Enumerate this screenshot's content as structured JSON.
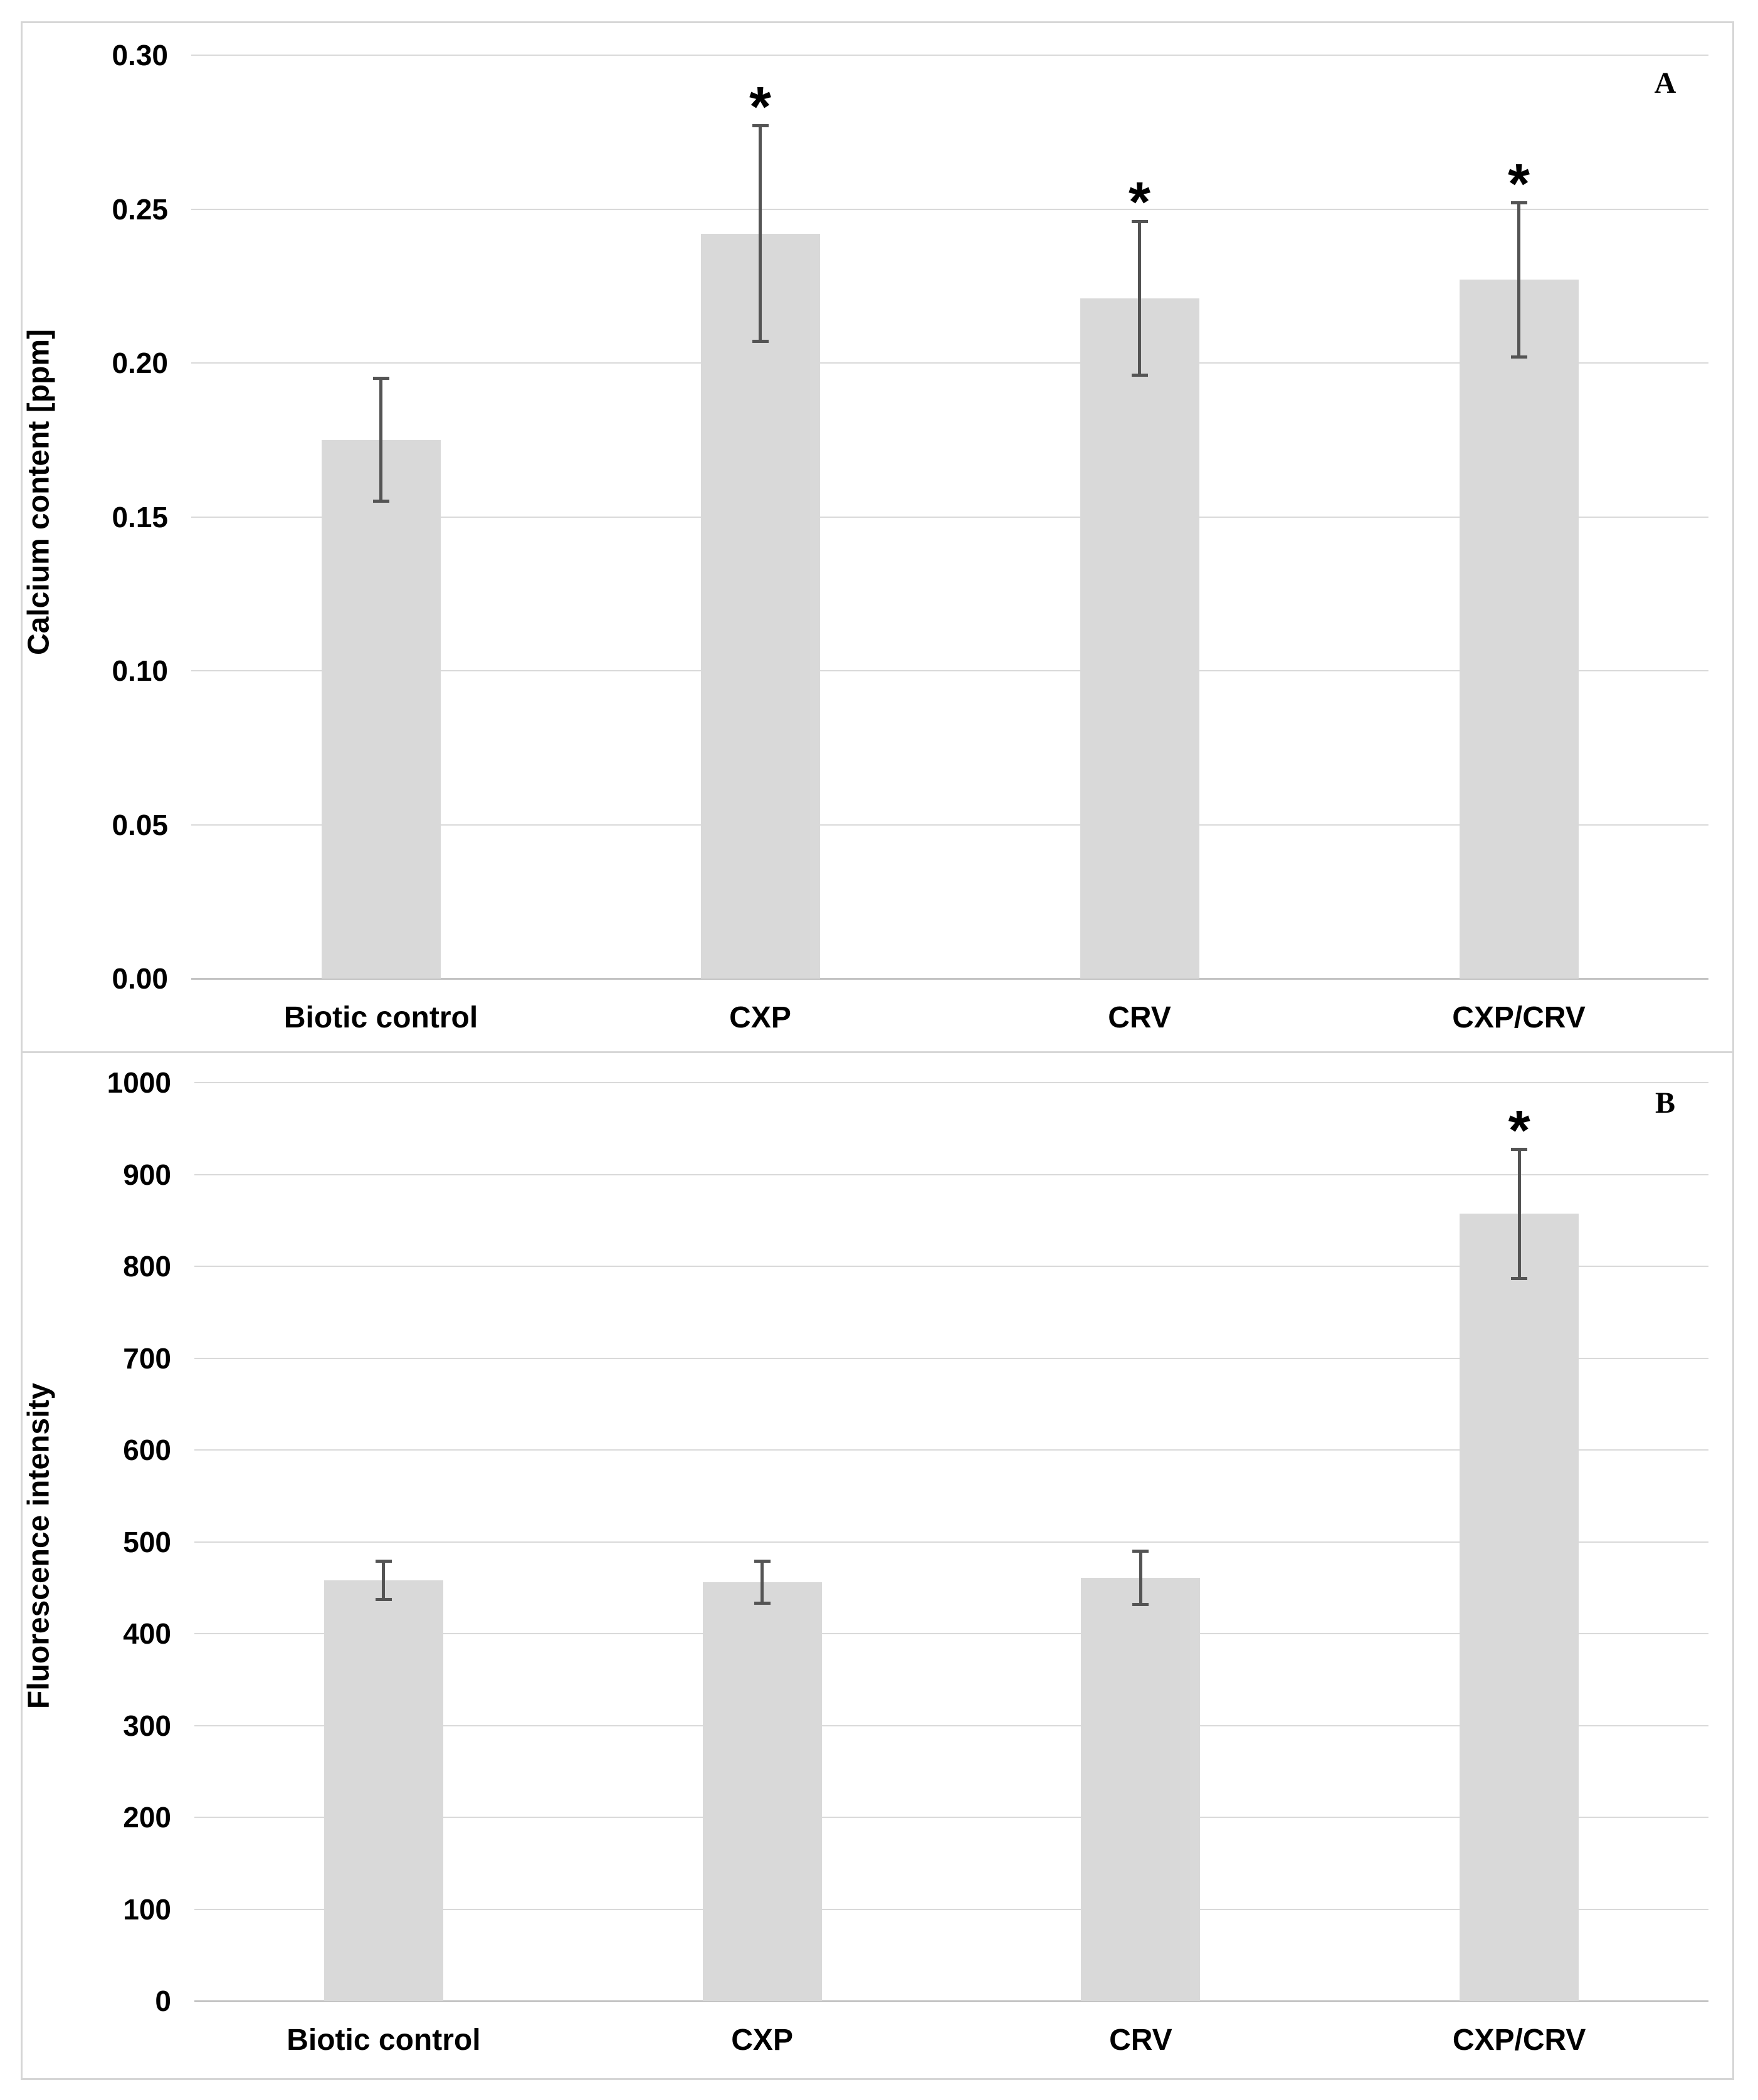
{
  "figure": {
    "significance_marker": "*",
    "background": "#ffffff"
  },
  "colors": {
    "bar_fill": "#d9d9d9",
    "error_bar": "#545454",
    "gridline": "#d9d9d9",
    "baseline": "#c3c3c3",
    "panel_border": "#d6d6d6",
    "text": "#000000"
  },
  "chart_data": [
    {
      "id": "A",
      "type": "bar",
      "panel_label": "A",
      "title": "",
      "xlabel": "",
      "ylabel": "Calcium content [ppm]",
      "categories": [
        "Biotic control",
        "CXP",
        "CRV",
        "CXP/CRV"
      ],
      "values": [
        0.175,
        0.242,
        0.221,
        0.227
      ],
      "errors": [
        0.02,
        0.035,
        0.025,
        0.025
      ],
      "significant": [
        false,
        true,
        true,
        true
      ],
      "ylim": [
        0,
        0.3
      ],
      "ytick_step": 0.05,
      "ytick_decimals": 2,
      "yticks": [
        "0.00",
        "0.05",
        "0.10",
        "0.15",
        "0.20",
        "0.25",
        "0.30"
      ],
      "grid": true,
      "legend": "none"
    },
    {
      "id": "B",
      "type": "bar",
      "panel_label": "B",
      "title": "",
      "xlabel": "",
      "ylabel": "Fluorescence intensity",
      "categories": [
        "Biotic control",
        "CXP",
        "CRV",
        "CXP/CRV"
      ],
      "values": [
        458,
        456,
        461,
        857
      ],
      "errors": [
        21,
        23,
        29,
        70
      ],
      "significant": [
        false,
        false,
        false,
        true
      ],
      "ylim": [
        0,
        1000
      ],
      "ytick_step": 100,
      "ytick_decimals": 0,
      "yticks": [
        "0",
        "100",
        "200",
        "300",
        "400",
        "500",
        "600",
        "700",
        "800",
        "900",
        "1000"
      ],
      "grid": true,
      "legend": "none"
    }
  ]
}
